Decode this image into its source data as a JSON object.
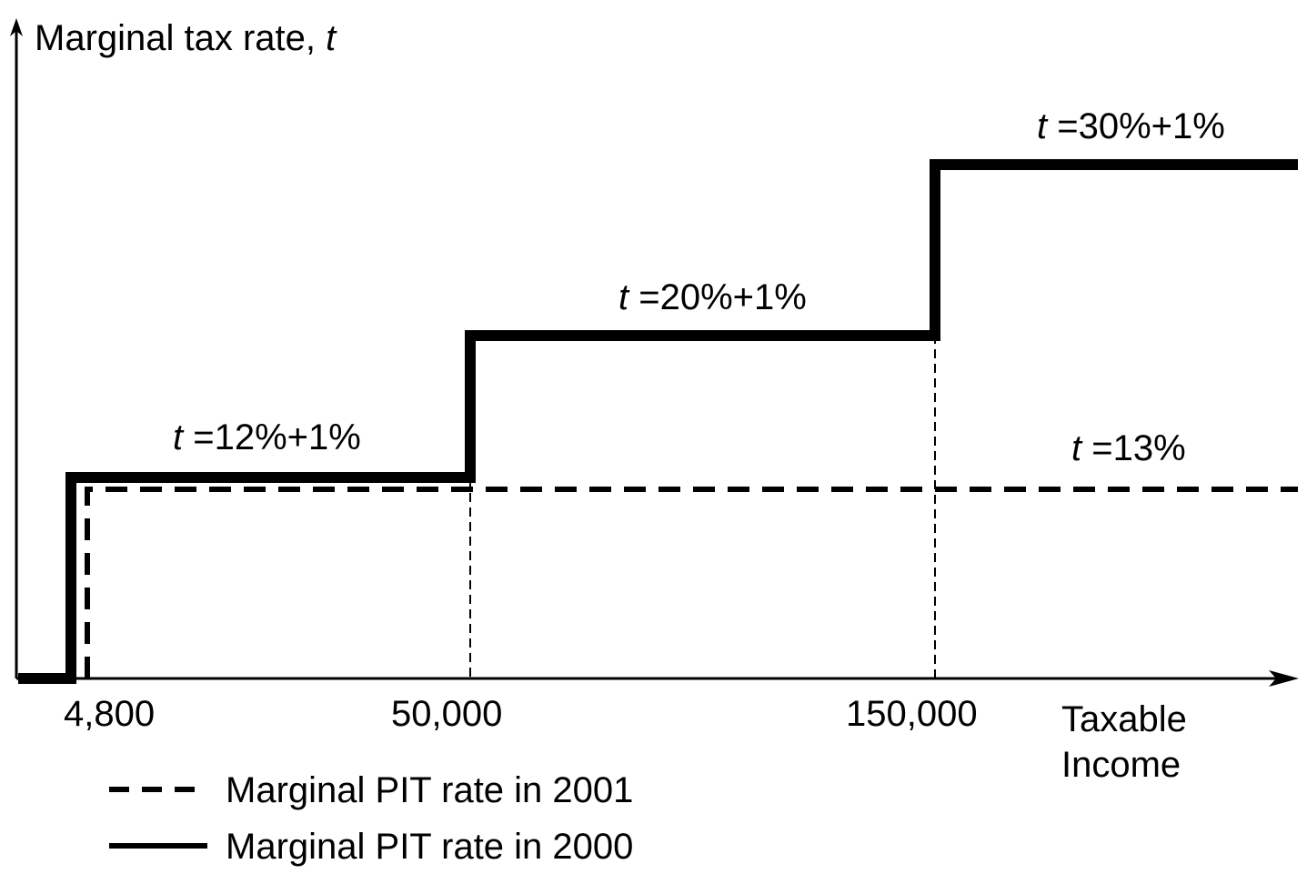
{
  "chart_data": {
    "type": "line",
    "title": "",
    "ylabel": "Marginal tax rate, ",
    "ylabel_var": "t",
    "xlabel_line1": "Taxable",
    "xlabel_line2": "Income",
    "x_ticks": [
      "4,800",
      "50,000",
      "150,000"
    ],
    "grid": false,
    "legend_position": "bottom-left",
    "series": [
      {
        "name": "Marginal PIT rate in 2000",
        "style": "solid",
        "color": "#000000",
        "steps": [
          {
            "x_from": 0,
            "x_to": 4800,
            "rate": 0
          },
          {
            "x_from": 4800,
            "x_to": 50000,
            "rate": 13
          },
          {
            "x_from": 50000,
            "x_to": 150000,
            "rate": 21
          },
          {
            "x_from": 150000,
            "x_to": null,
            "rate": 31
          }
        ]
      },
      {
        "name": "Marginal PIT rate in 2001",
        "style": "dashed",
        "color": "#000000",
        "steps": [
          {
            "x_from": 0,
            "x_to": 4800,
            "rate": 0
          },
          {
            "x_from": 4800,
            "x_to": null,
            "rate": 13
          }
        ]
      }
    ],
    "annotations": [
      {
        "var": "t",
        "text": " =12%+1%"
      },
      {
        "var": "t",
        "text": " =20%+1%"
      },
      {
        "var": "t",
        "text": " =30%+1%"
      },
      {
        "var": "t",
        "text": " =13%"
      }
    ]
  }
}
